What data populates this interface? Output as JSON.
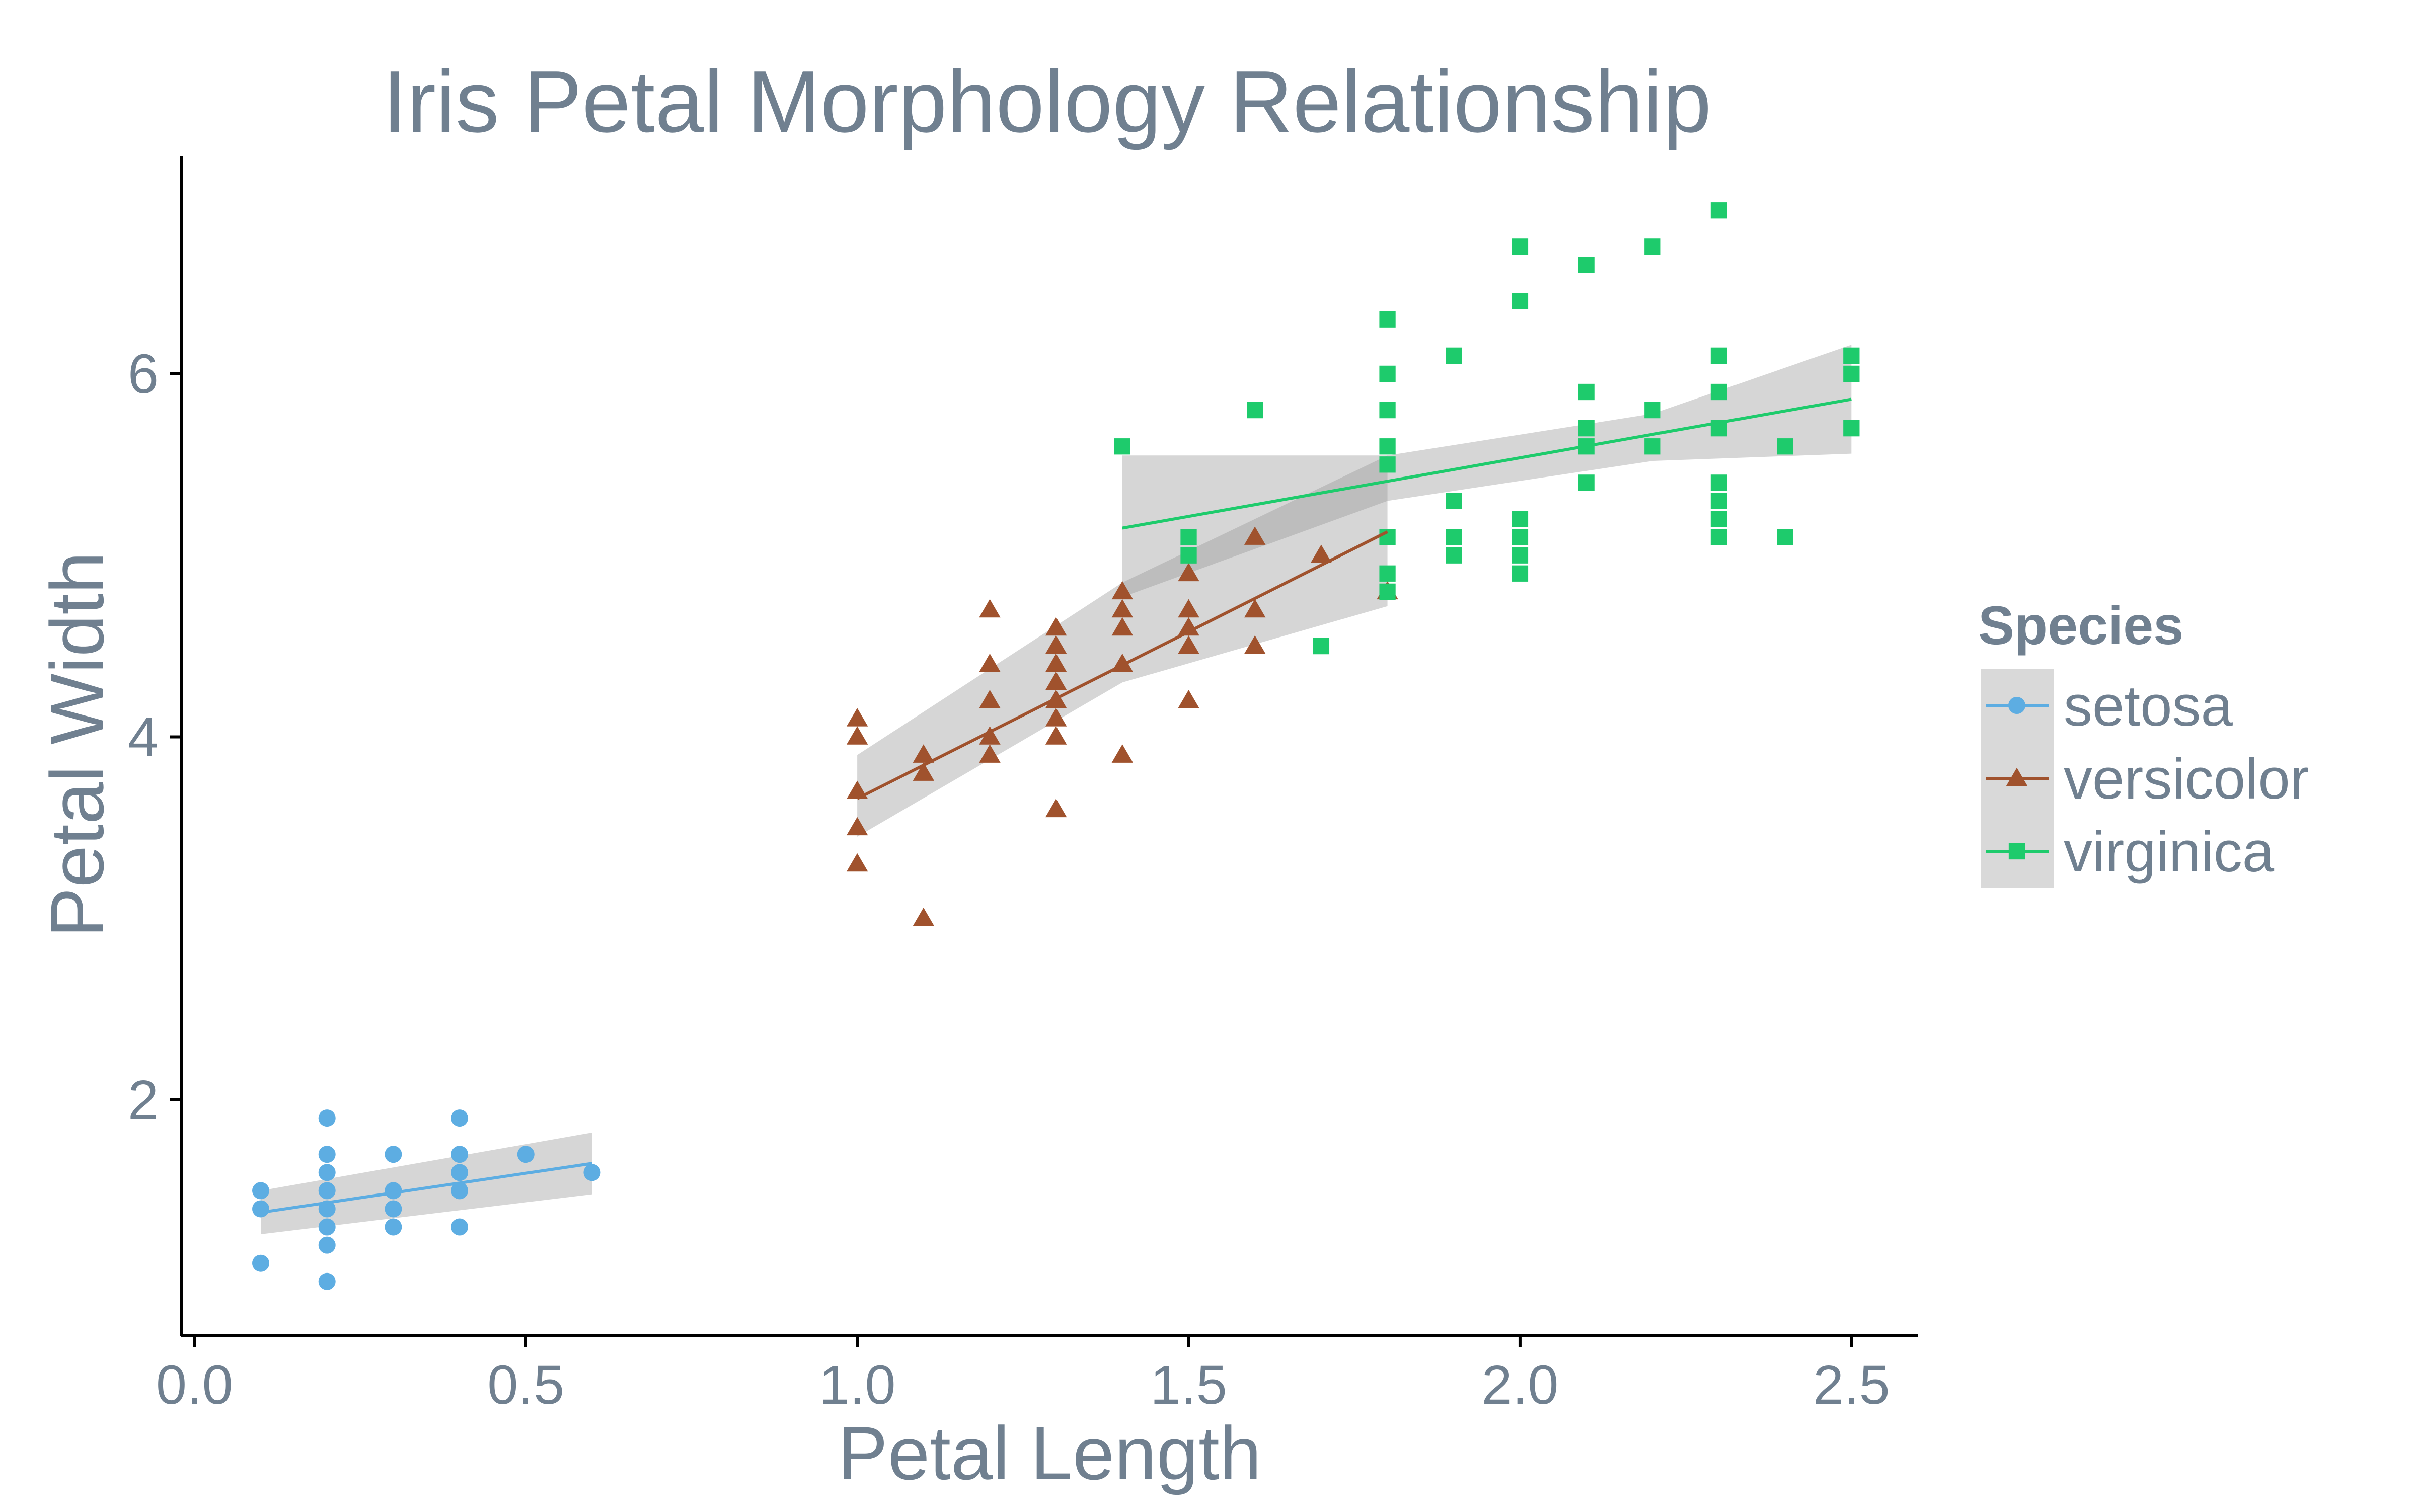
{
  "chart_data": {
    "type": "scatter",
    "title": "Iris Petal Morphology Relationship",
    "xlabel": "Petal Length",
    "ylabel": "Petal Width",
    "xlim": [
      -0.02,
      2.6
    ],
    "ylim": [
      0.7,
      7.2
    ],
    "x_ticks": [
      0.0,
      0.5,
      1.0,
      1.5,
      2.0,
      2.5
    ],
    "x_tick_labels": [
      "0.0",
      "0.5",
      "1.0",
      "1.5",
      "2.0",
      "2.5"
    ],
    "y_ticks": [
      2,
      4,
      6
    ],
    "y_tick_labels": [
      "2",
      "4",
      "6"
    ],
    "grid": false,
    "legend": {
      "title": "Species",
      "position": "right"
    },
    "text_color": "#708090",
    "series": [
      {
        "name": "setosa",
        "color": "#5DADE2",
        "marker": "circle",
        "points": [
          [
            0.1,
            1.1
          ],
          [
            0.1,
            1.4
          ],
          [
            0.1,
            1.5
          ],
          [
            0.2,
            1.0
          ],
          [
            0.2,
            1.2
          ],
          [
            0.2,
            1.3
          ],
          [
            0.2,
            1.4
          ],
          [
            0.2,
            1.5
          ],
          [
            0.2,
            1.6
          ],
          [
            0.2,
            1.7
          ],
          [
            0.2,
            1.9
          ],
          [
            0.3,
            1.3
          ],
          [
            0.3,
            1.4
          ],
          [
            0.3,
            1.5
          ],
          [
            0.3,
            1.7
          ],
          [
            0.4,
            1.3
          ],
          [
            0.4,
            1.5
          ],
          [
            0.4,
            1.6
          ],
          [
            0.4,
            1.7
          ],
          [
            0.4,
            1.9
          ],
          [
            0.5,
            1.7
          ],
          [
            0.6,
            1.6
          ]
        ],
        "fit": {
          "x": [
            0.1,
            0.6
          ],
          "y": [
            1.38,
            1.65
          ]
        },
        "band": {
          "x": [
            0.1,
            0.6
          ],
          "upper": [
            1.5,
            1.82
          ],
          "lower": [
            1.26,
            1.48
          ]
        }
      },
      {
        "name": "versicolor",
        "color": "#A0522D",
        "marker": "triangle",
        "points": [
          [
            1.0,
            3.3
          ],
          [
            1.0,
            3.5
          ],
          [
            1.0,
            3.7
          ],
          [
            1.0,
            4.0
          ],
          [
            1.0,
            4.1
          ],
          [
            1.1,
            3.0
          ],
          [
            1.1,
            3.8
          ],
          [
            1.1,
            3.9
          ],
          [
            1.2,
            3.9
          ],
          [
            1.2,
            4.0
          ],
          [
            1.2,
            4.2
          ],
          [
            1.2,
            4.4
          ],
          [
            1.2,
            4.7
          ],
          [
            1.3,
            3.6
          ],
          [
            1.3,
            4.0
          ],
          [
            1.3,
            4.1
          ],
          [
            1.3,
            4.2
          ],
          [
            1.3,
            4.3
          ],
          [
            1.3,
            4.4
          ],
          [
            1.3,
            4.5
          ],
          [
            1.3,
            4.6
          ],
          [
            1.4,
            3.9
          ],
          [
            1.4,
            4.4
          ],
          [
            1.4,
            4.6
          ],
          [
            1.4,
            4.7
          ],
          [
            1.4,
            4.8
          ],
          [
            1.5,
            4.2
          ],
          [
            1.5,
            4.5
          ],
          [
            1.5,
            4.6
          ],
          [
            1.5,
            4.7
          ],
          [
            1.5,
            4.9
          ],
          [
            1.6,
            4.5
          ],
          [
            1.6,
            4.7
          ],
          [
            1.6,
            5.1
          ],
          [
            1.7,
            5.0
          ],
          [
            1.8,
            4.8
          ]
        ],
        "fit": {
          "x": [
            1.0,
            1.8
          ],
          "y": [
            3.66,
            5.13
          ]
        },
        "band": {
          "x": [
            1.0,
            1.4,
            1.8
          ],
          "upper": [
            3.9,
            4.85,
            5.55
          ],
          "lower": [
            3.45,
            4.3,
            4.72
          ]
        }
      },
      {
        "name": "virginica",
        "color": "#1ECB6C",
        "marker": "square",
        "points": [
          [
            1.4,
            5.6
          ],
          [
            1.5,
            5.0
          ],
          [
            1.5,
            5.1
          ],
          [
            1.6,
            5.8
          ],
          [
            1.7,
            4.5
          ],
          [
            1.8,
            4.8
          ],
          [
            1.8,
            4.9
          ],
          [
            1.8,
            5.1
          ],
          [
            1.8,
            5.5
          ],
          [
            1.8,
            5.6
          ],
          [
            1.8,
            5.8
          ],
          [
            1.8,
            6.0
          ],
          [
            1.8,
            6.3
          ],
          [
            1.9,
            5.0
          ],
          [
            1.9,
            5.1
          ],
          [
            1.9,
            5.3
          ],
          [
            1.9,
            6.1
          ],
          [
            2.0,
            4.9
          ],
          [
            2.0,
            5.0
          ],
          [
            2.0,
            5.1
          ],
          [
            2.0,
            5.2
          ],
          [
            2.0,
            6.4
          ],
          [
            2.0,
            6.7
          ],
          [
            2.1,
            5.4
          ],
          [
            2.1,
            5.6
          ],
          [
            2.1,
            5.7
          ],
          [
            2.1,
            5.9
          ],
          [
            2.1,
            6.6
          ],
          [
            2.2,
            5.6
          ],
          [
            2.2,
            5.8
          ],
          [
            2.2,
            6.7
          ],
          [
            2.3,
            5.1
          ],
          [
            2.3,
            5.2
          ],
          [
            2.3,
            5.3
          ],
          [
            2.3,
            5.4
          ],
          [
            2.3,
            5.7
          ],
          [
            2.3,
            5.9
          ],
          [
            2.3,
            6.1
          ],
          [
            2.3,
            6.9
          ],
          [
            2.4,
            5.1
          ],
          [
            2.4,
            5.6
          ],
          [
            2.5,
            5.7
          ],
          [
            2.5,
            6.0
          ],
          [
            2.5,
            6.1
          ]
        ],
        "fit": {
          "x": [
            1.4,
            2.5
          ],
          "y": [
            5.15,
            5.86
          ]
        },
        "band": {
          "x": [
            1.4,
            1.8,
            2.2,
            2.5
          ],
          "upper": [
            5.55,
            5.55,
            5.78,
            6.16
          ],
          "lower": [
            4.77,
            5.3,
            5.52,
            5.56
          ]
        }
      }
    ]
  }
}
